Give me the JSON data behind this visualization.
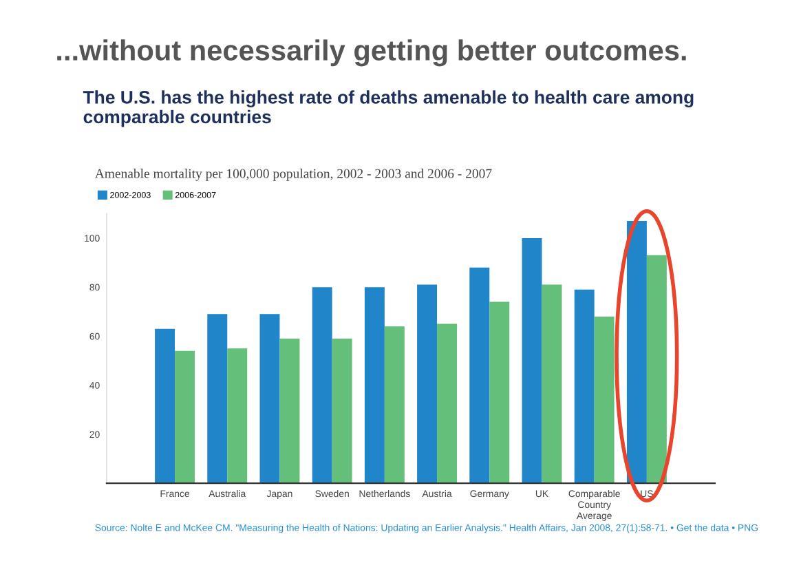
{
  "chart_data": {
    "type": "bar",
    "title": "...without necessarily getting better outcomes.",
    "subtitle": "The U.S. has the highest rate of deaths amenable to health care among comparable countries",
    "ylabel": "Amenable mortality per 100,000 population, 2002 - 2003 and 2006 - 2007",
    "categories": [
      "France",
      "Australia",
      "Japan",
      "Sweden",
      "Netherlands",
      "Austria",
      "Germany",
      "UK",
      "Comparable\nCountry\nAverage",
      "US"
    ],
    "series": [
      {
        "name": "2002-2003",
        "color": "#2185c9",
        "values": [
          63,
          69,
          69,
          80,
          80,
          81,
          88,
          100,
          79,
          107
        ]
      },
      {
        "name": "2006-2007",
        "color": "#64bf7b",
        "values": [
          54,
          55,
          59,
          59,
          64,
          65,
          74,
          81,
          68,
          93
        ]
      }
    ],
    "ylim": [
      0,
      110
    ],
    "yticks": [
      20,
      40,
      60,
      80,
      100
    ],
    "grid": false,
    "legend": "top left",
    "annotations": [
      "Source: Nolte E and McKee CM. \"Measuring the Health of Nations: Updating an Earlier Analysis.\" Health Affairs, Jan 2008, 27(1):58-71. • Get the data • PNG"
    ]
  }
}
